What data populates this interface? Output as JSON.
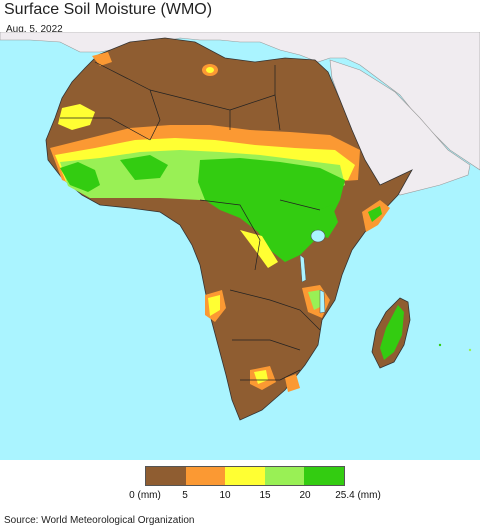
{
  "header": {
    "title": "Surface Soil Moisture (WMO)",
    "date": "Aug. 5, 2022"
  },
  "map": {
    "ocean_color": "#aaf4ff",
    "outside_land_color": "#f0ecf0",
    "dry_color": "#8f5d31"
  },
  "legend": {
    "colors": [
      "#8f5d31",
      "#fb9933",
      "#ffff33",
      "#99f055",
      "#33cc11"
    ],
    "labels": [
      "0 (mm)",
      "5",
      "10",
      "15",
      "20",
      "25.4 (mm)"
    ]
  },
  "footer": {
    "source": "Source: World Meteorological Organization"
  }
}
